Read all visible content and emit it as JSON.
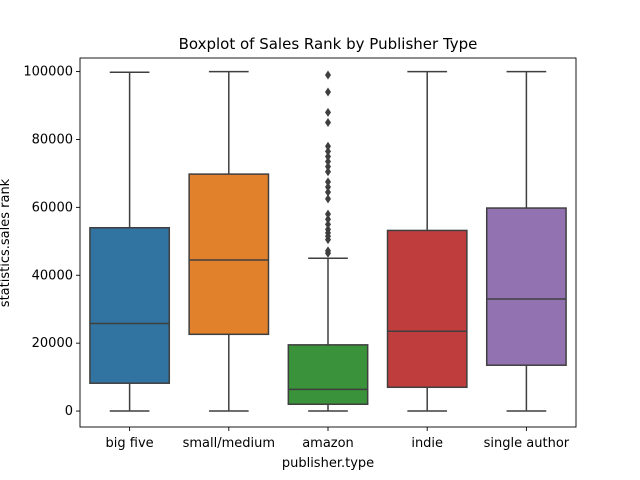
{
  "chart_data": {
    "type": "boxplot",
    "title": "Boxplot of Sales Rank by Publisher Type",
    "xlabel": "publisher.type",
    "ylabel": "statistics.sales rank",
    "ylim": [
      -4700,
      104000
    ],
    "yticks": [
      0,
      20000,
      40000,
      60000,
      80000,
      100000
    ],
    "ytick_labels": [
      "0",
      "20000",
      "40000",
      "60000",
      "80000",
      "100000"
    ],
    "grid": false,
    "categories": [
      "big five",
      "small/medium",
      "amazon",
      "indie",
      "single author"
    ],
    "colors": [
      "#3274a1",
      "#e1812c",
      "#3a923a",
      "#c03d3e",
      "#9372b2"
    ],
    "boxes": [
      {
        "category": "big five",
        "whisker_low": 0,
        "q1": 8200,
        "median": 25800,
        "q3": 54000,
        "whisker_high": 99800,
        "fliers": []
      },
      {
        "category": "small/medium",
        "whisker_low": 0,
        "q1": 22600,
        "median": 44500,
        "q3": 69800,
        "whisker_high": 100000,
        "fliers": []
      },
      {
        "category": "amazon",
        "whisker_low": 0,
        "q1": 2000,
        "median": 6400,
        "q3": 19500,
        "whisker_high": 45000,
        "fliers": [
          46500,
          47200,
          50500,
          51500,
          52500,
          53500,
          55000,
          56500,
          58000,
          62500,
          64500,
          66000,
          67500,
          70500,
          72000,
          73500,
          75000,
          76500,
          78000,
          85000,
          88000,
          94000,
          99000
        ]
      },
      {
        "category": "indie",
        "whisker_low": 0,
        "q1": 7000,
        "median": 23500,
        "q3": 53200,
        "whisker_high": 100000,
        "fliers": []
      },
      {
        "category": "single author",
        "whisker_low": 0,
        "q1": 13500,
        "median": 33000,
        "q3": 59800,
        "whisker_high": 100000,
        "fliers": []
      }
    ]
  }
}
